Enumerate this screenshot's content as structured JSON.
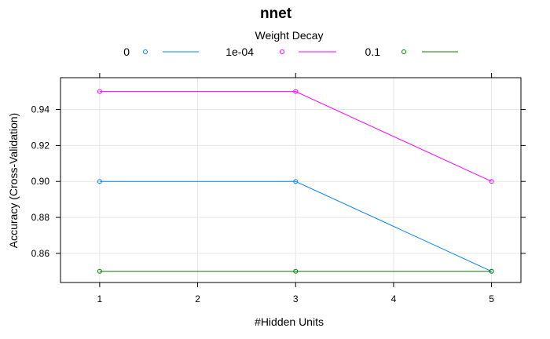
{
  "chart_data": {
    "type": "line",
    "title": "nnet",
    "xlabel": "#Hidden Units",
    "ylabel": "Accuracy (Cross-Validation)",
    "x": [
      1,
      3,
      5
    ],
    "xticks": [
      1,
      2,
      3,
      4,
      5
    ],
    "yticks": [
      0.86,
      0.88,
      0.9,
      0.92,
      0.94
    ],
    "xtick_labels": [
      "1",
      "2",
      "3",
      "4",
      "5"
    ],
    "ytick_labels": [
      "0.86",
      "0.88",
      "0.90",
      "0.92",
      "0.94"
    ],
    "xlim": [
      0.6,
      5.3
    ],
    "ylim": [
      0.8438,
      0.9577
    ],
    "grid": true,
    "legend": {
      "title": "Weight Decay",
      "placement": "top"
    },
    "series": [
      {
        "name": "0",
        "color": "#0080ff",
        "values": [
          0.9,
          0.9,
          0.85
        ]
      },
      {
        "name": "1e-04",
        "color": "#ff00ff",
        "values": [
          0.95,
          0.95,
          0.9
        ]
      },
      {
        "name": "0.1",
        "color": "#008000",
        "values": [
          0.85,
          0.85,
          0.85
        ]
      }
    ]
  }
}
